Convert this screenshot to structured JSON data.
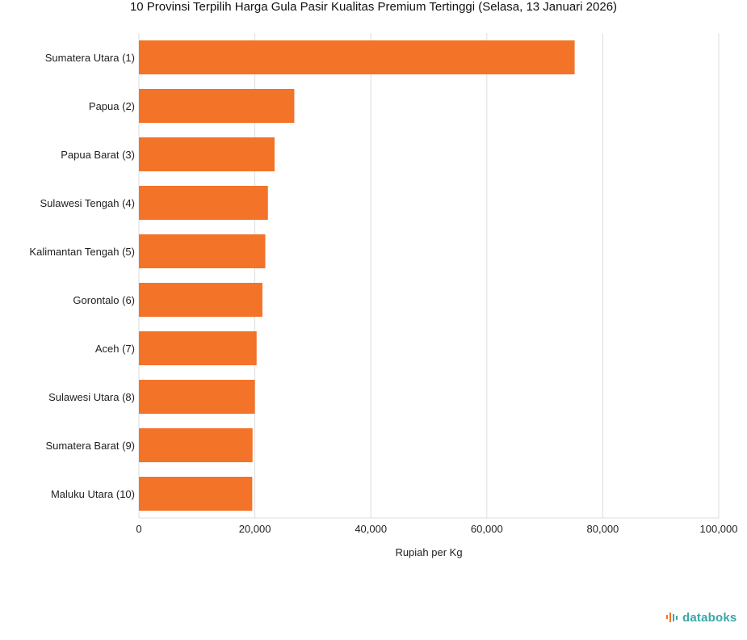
{
  "chart_data": {
    "type": "bar",
    "orientation": "horizontal",
    "title": "10 Provinsi Terpilih Harga Gula Pasir Kualitas Premium Tertinggi (Selasa, 13 Januari 2026)",
    "xlabel": "Rupiah per Kg",
    "ylabel": "",
    "categories": [
      "Sumatera Utara (1)",
      "Papua (2)",
      "Papua Barat (3)",
      "Sulawesi Tengah (4)",
      "Kalimantan Tengah (5)",
      "Gorontalo (6)",
      "Aceh (7)",
      "Sulawesi Utara (8)",
      "Sumatera Barat (9)",
      "Maluku Utara (10)"
    ],
    "values": [
      75150,
      26800,
      23400,
      22250,
      21800,
      21300,
      20300,
      20000,
      19600,
      19550
    ],
    "xlim": [
      0,
      100000
    ],
    "xticks": [
      "0",
      "20,000",
      "40,000",
      "60,000",
      "80,000",
      "100,000"
    ],
    "grid": true,
    "legend": "none",
    "bar_color": "#f37329",
    "grid_color": "#dddddd"
  },
  "branding": {
    "logo_text": "databoks",
    "logo_color": "#3aa6a8",
    "logo_icon": "databoks-bars-icon"
  }
}
